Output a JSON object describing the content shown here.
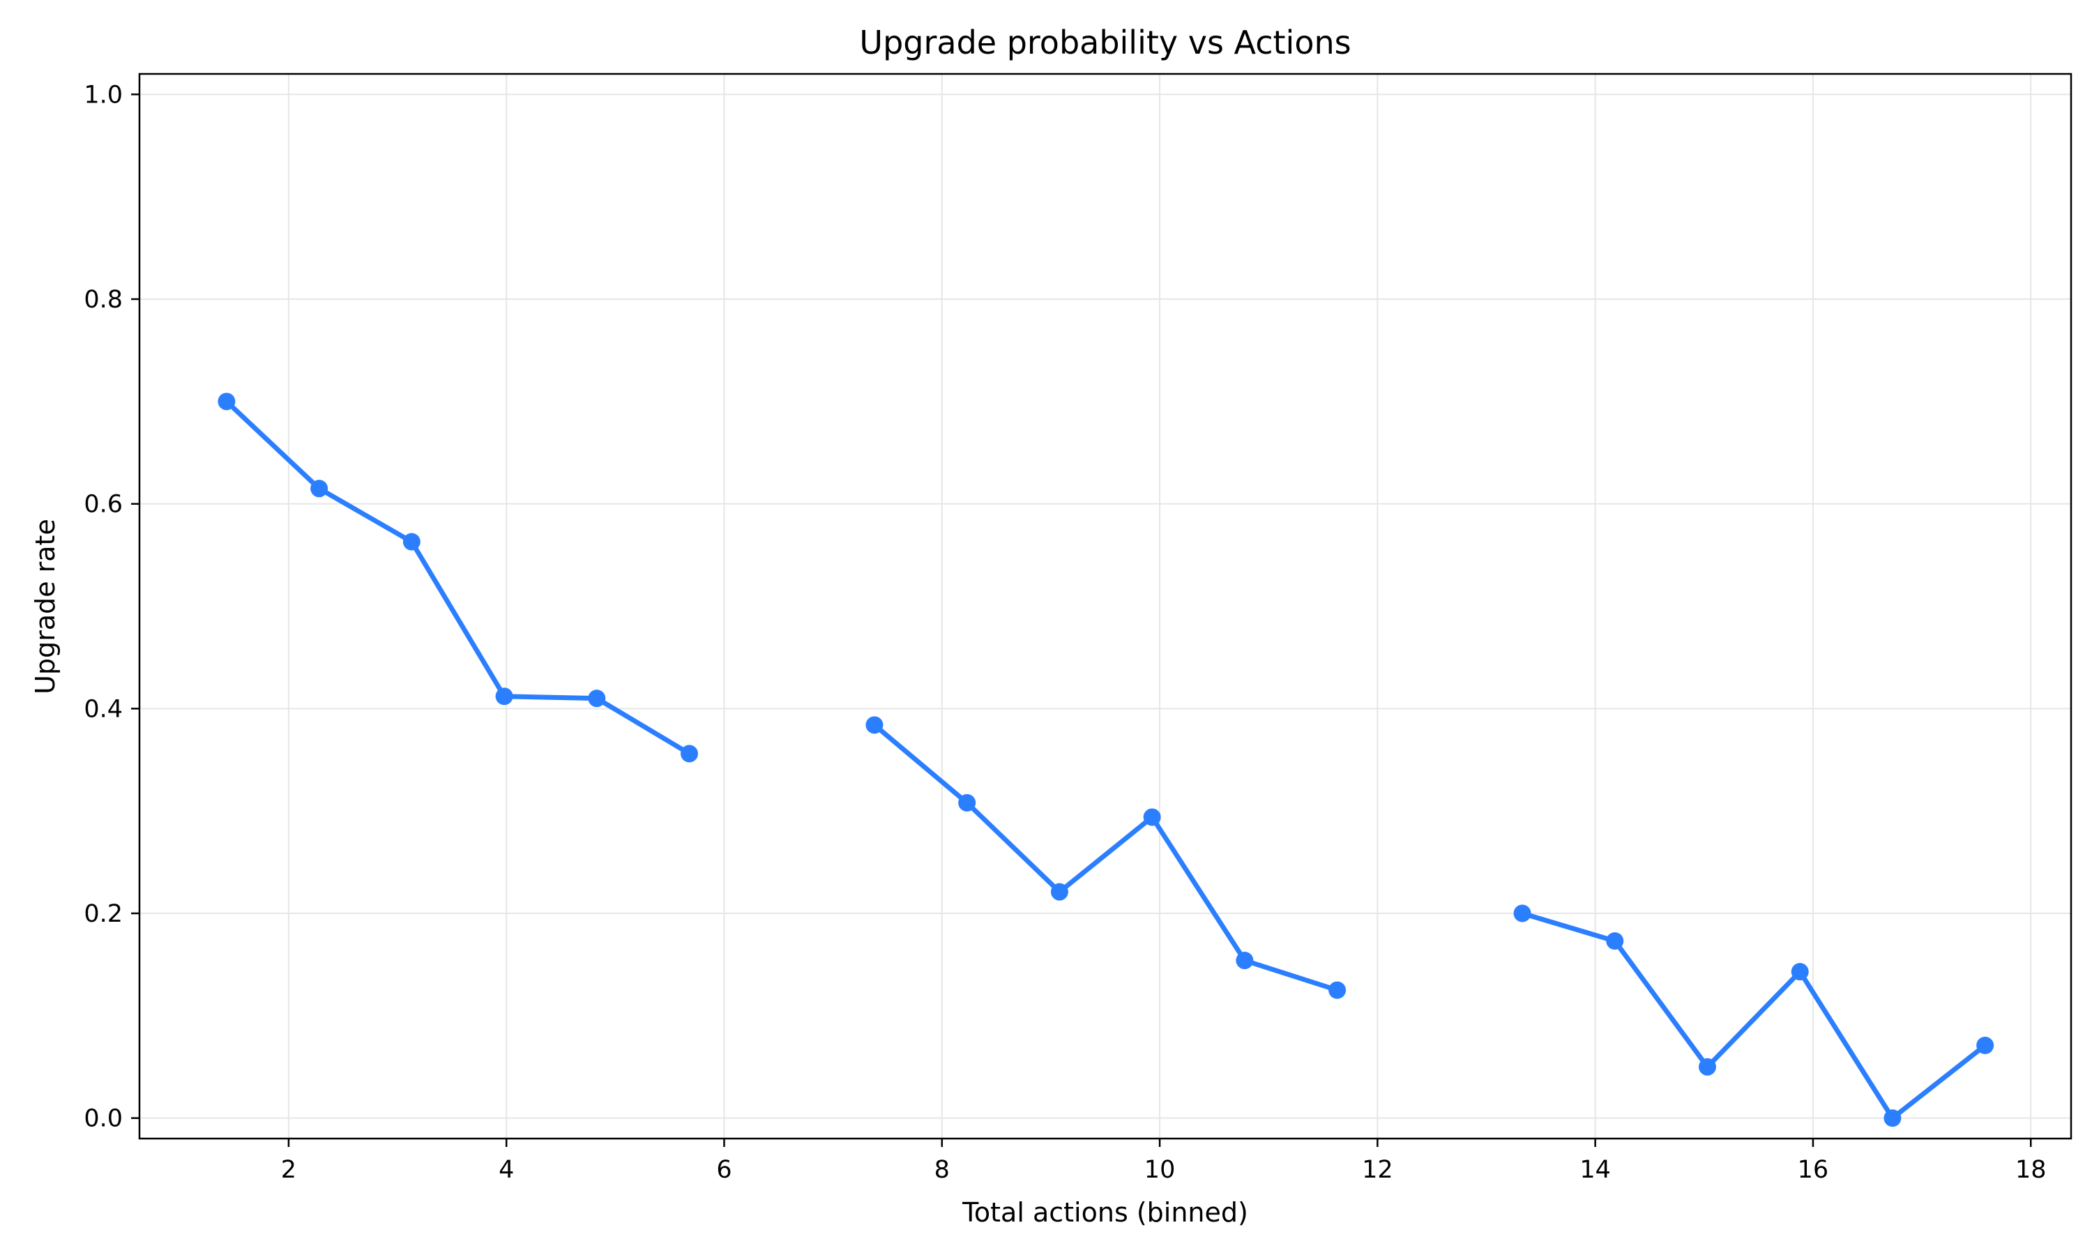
{
  "chart_data": {
    "type": "line",
    "title": "Upgrade probability vs Actions",
    "xlabel": "Total actions (binned)",
    "ylabel": "Upgrade rate",
    "xlim": [
      0.63,
      18.37
    ],
    "ylim": [
      -0.02,
      1.02
    ],
    "xticks": [
      2,
      4,
      6,
      8,
      10,
      12,
      14,
      16,
      18
    ],
    "xtick_labels": [
      "2",
      "4",
      "6",
      "8",
      "10",
      "12",
      "14",
      "16",
      "18"
    ],
    "yticks": [
      0.0,
      0.2,
      0.4,
      0.6,
      0.8,
      1.0
    ],
    "ytick_labels": [
      "0.0",
      "0.2",
      "0.4",
      "0.6",
      "0.8",
      "1.0"
    ],
    "grid": true,
    "series": [
      {
        "color": "#2b7fff",
        "segments": [
          {
            "x": [
              1.43,
              2.28,
              3.13,
              3.98,
              4.83,
              5.68
            ],
            "y": [
              0.7,
              0.615,
              0.563,
              0.412,
              0.41,
              0.356
            ]
          },
          {
            "x": [
              7.38,
              8.23,
              9.08,
              9.93,
              10.78,
              11.63
            ],
            "y": [
              0.384,
              0.308,
              0.221,
              0.294,
              0.154,
              0.125
            ]
          },
          {
            "x": [
              13.33,
              14.18,
              15.03,
              15.88,
              16.73,
              17.58
            ],
            "y": [
              0.2,
              0.173,
              0.05,
              0.143,
              0.0,
              0.071
            ]
          }
        ]
      }
    ]
  }
}
